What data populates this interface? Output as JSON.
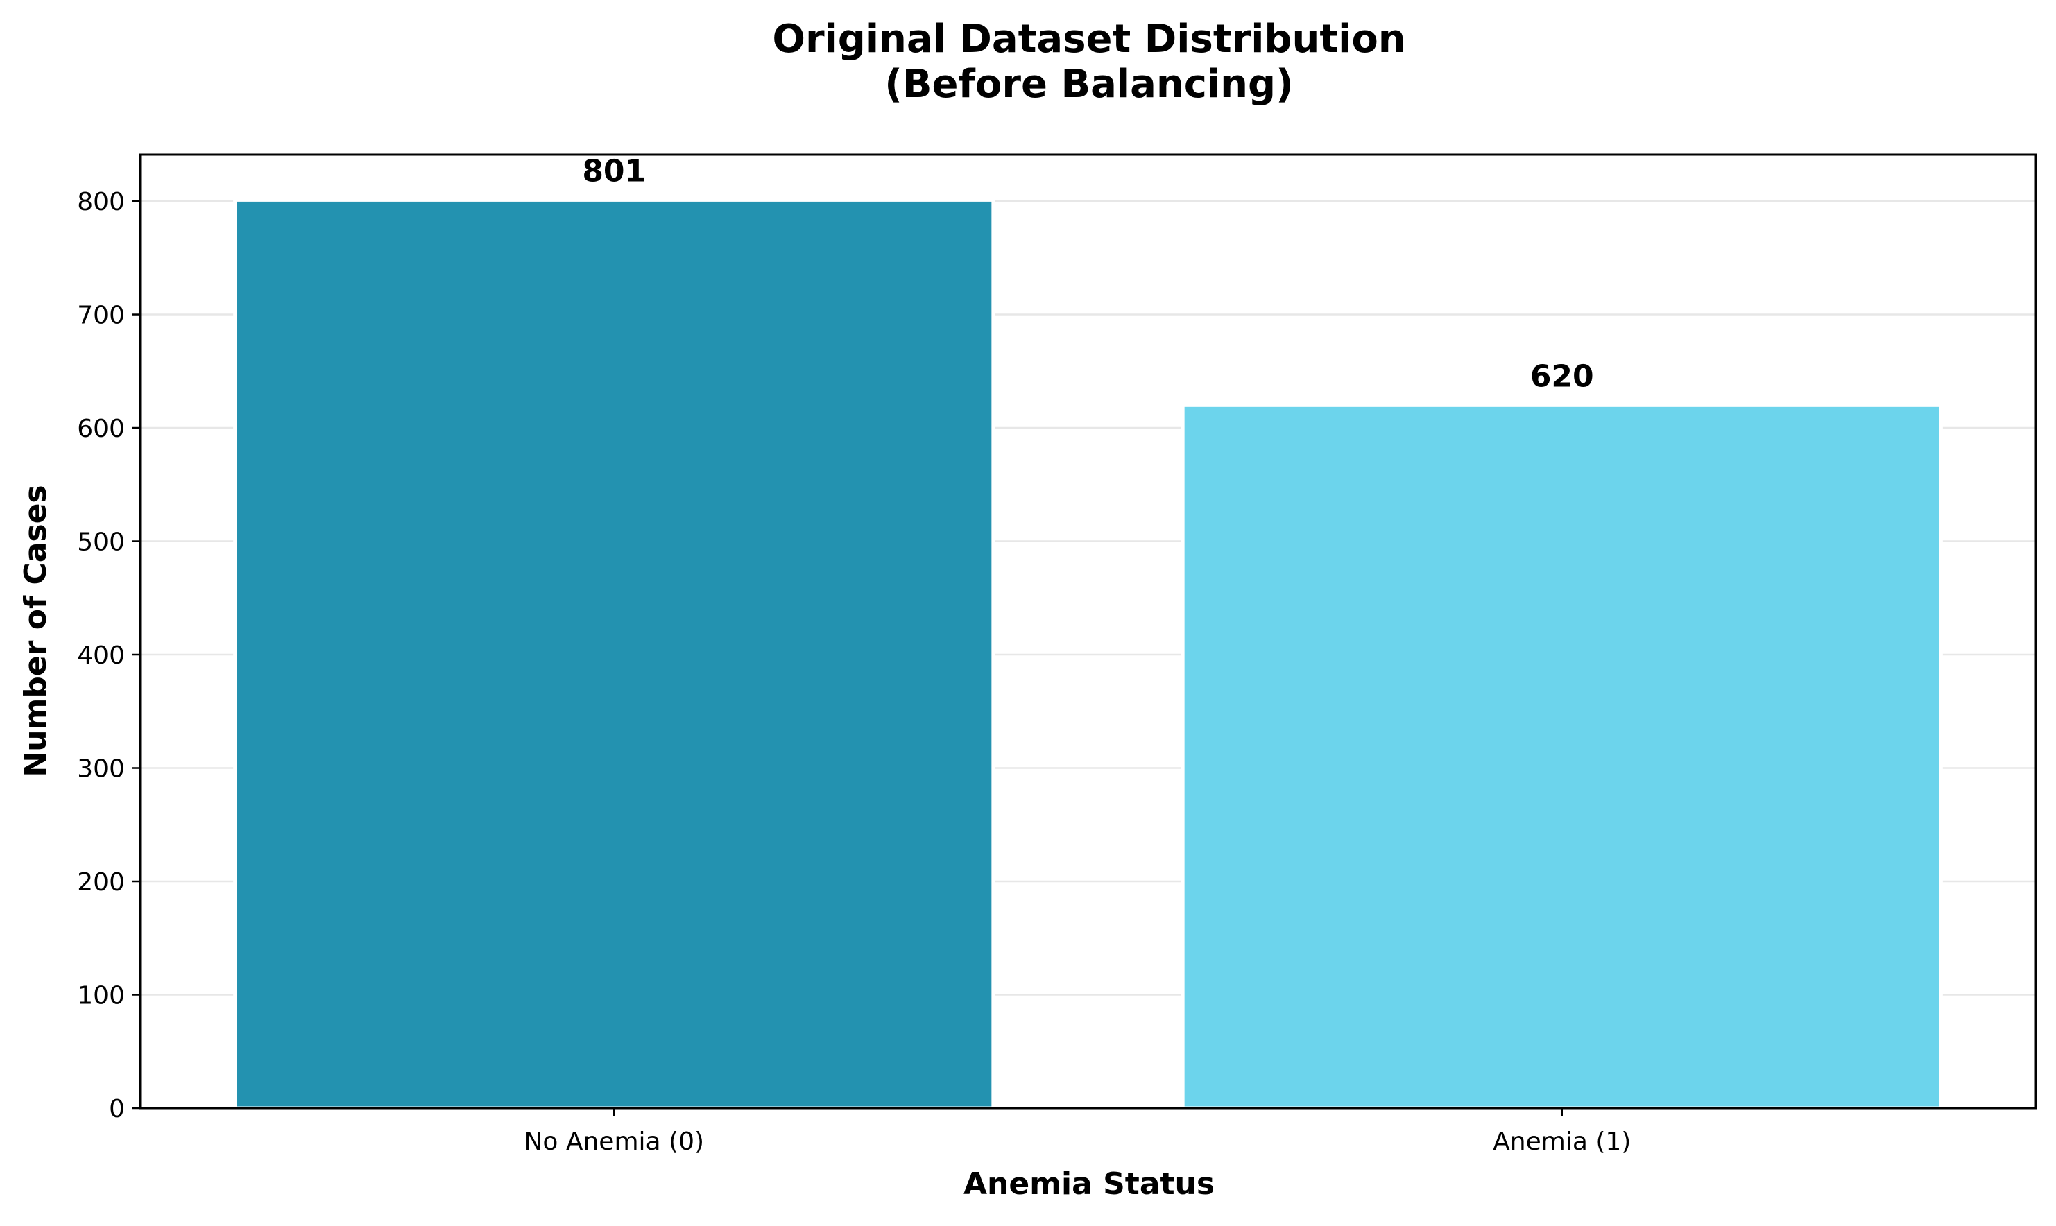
{
  "chart_data": {
    "type": "bar",
    "title_lines": [
      "Original Dataset Distribution",
      "(Before Balancing)"
    ],
    "xlabel": "Anemia Status",
    "ylabel": "Number of Cases",
    "categories": [
      "No Anemia (0)",
      "Anemia (1)"
    ],
    "values": [
      801,
      620
    ],
    "value_labels": [
      "801",
      "620"
    ],
    "bar_colors": [
      "#2392B0",
      "#6CD4EC"
    ],
    "ylim": [
      0,
      841
    ],
    "yticks": [
      0,
      100,
      200,
      300,
      400,
      500,
      600,
      700,
      800
    ],
    "ytick_labels": [
      "0",
      "100",
      "200",
      "300",
      "400",
      "500",
      "600",
      "700",
      "800"
    ],
    "grid": "horizontal",
    "legend": "none"
  }
}
